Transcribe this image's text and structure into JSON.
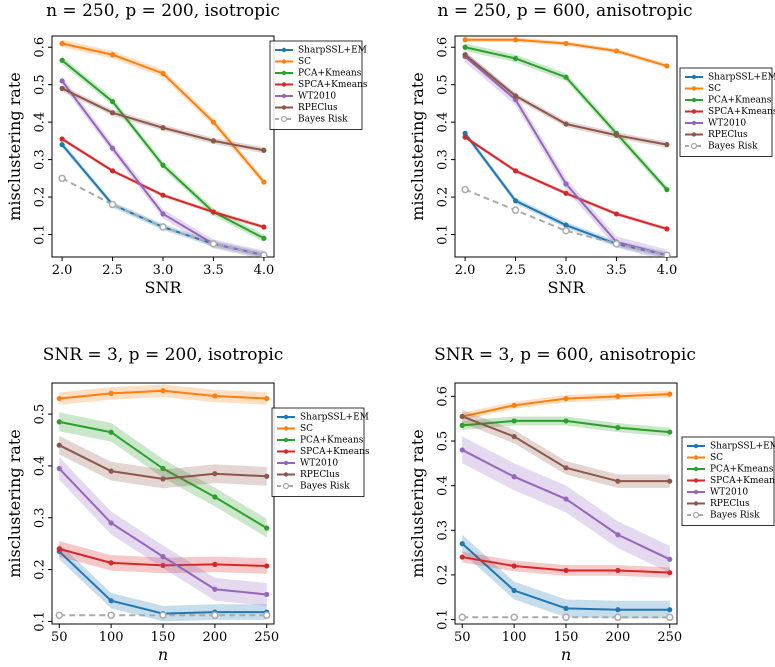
{
  "chart_data": [
    {
      "type": "line",
      "title": "n = 250, p = 200, isotropic",
      "xlabel": "SNR",
      "ylabel": "misclustering rate",
      "x": [
        2.0,
        2.5,
        3.0,
        3.5,
        4.0
      ],
      "xticks": [
        "2.0",
        "2.5",
        "3.0",
        "3.5",
        "4.0"
      ],
      "xlim": [
        1.9,
        4.1
      ],
      "ylim": [
        0.04,
        0.63
      ],
      "yticks": [
        0.1,
        0.2,
        0.3,
        0.4,
        0.5,
        0.6
      ],
      "legend_position": "top-right",
      "series": [
        {
          "name": "SharpSSL+EM",
          "values": [
            0.34,
            0.18,
            0.12,
            0.075,
            0.045
          ],
          "band": 0.008
        },
        {
          "name": "SC",
          "values": [
            0.61,
            0.58,
            0.53,
            0.4,
            0.24
          ],
          "band": 0.01
        },
        {
          "name": "PCA+Kmeans",
          "values": [
            0.565,
            0.455,
            0.285,
            0.16,
            0.09
          ],
          "band": 0.01
        },
        {
          "name": "SPCA+Kmeans",
          "values": [
            0.355,
            0.27,
            0.205,
            0.16,
            0.12
          ],
          "band": 0.005
        },
        {
          "name": "WT2010",
          "values": [
            0.51,
            0.33,
            0.155,
            0.075,
            0.045
          ],
          "band": 0.012
        },
        {
          "name": "RPEClus",
          "values": [
            0.49,
            0.425,
            0.385,
            0.35,
            0.325
          ],
          "band": 0.008
        },
        {
          "name": "Bayes Risk",
          "values": [
            0.25,
            0.18,
            0.12,
            0.075,
            0.045
          ],
          "dashed": true
        }
      ]
    },
    {
      "type": "line",
      "title": "n = 250, p = 600, anisotropic",
      "xlabel": "SNR",
      "ylabel": "misclustering rate",
      "x": [
        2.0,
        2.5,
        3.0,
        3.5,
        4.0
      ],
      "xticks": [
        "2.0",
        "2.5",
        "3.0",
        "3.5",
        "4.0"
      ],
      "xlim": [
        1.9,
        4.1
      ],
      "ylim": [
        0.04,
        0.63
      ],
      "yticks": [
        0.1,
        0.2,
        0.3,
        0.4,
        0.5,
        0.6
      ],
      "legend_position": "right",
      "series": [
        {
          "name": "SharpSSL+EM",
          "values": [
            0.37,
            0.19,
            0.125,
            0.075,
            0.045
          ],
          "band": 0.008
        },
        {
          "name": "SC",
          "values": [
            0.62,
            0.62,
            0.61,
            0.59,
            0.55
          ],
          "band": 0.006
        },
        {
          "name": "PCA+Kmeans",
          "values": [
            0.6,
            0.57,
            0.52,
            0.37,
            0.22
          ],
          "band": 0.01
        },
        {
          "name": "SPCA+Kmeans",
          "values": [
            0.36,
            0.27,
            0.21,
            0.155,
            0.115
          ],
          "band": 0.005
        },
        {
          "name": "WT2010",
          "values": [
            0.575,
            0.46,
            0.235,
            0.08,
            0.045
          ],
          "band": 0.015
        },
        {
          "name": "RPEClus",
          "values": [
            0.58,
            0.47,
            0.395,
            0.365,
            0.34
          ],
          "band": 0.008
        },
        {
          "name": "Bayes Risk",
          "values": [
            0.22,
            0.165,
            0.11,
            0.075,
            0.045
          ],
          "dashed": true
        }
      ]
    },
    {
      "type": "line",
      "title": "SNR = 3, p = 200, isotropic",
      "xlabel": "n",
      "ylabel": "misclustering rate",
      "x": [
        50,
        100,
        150,
        200,
        250
      ],
      "xticks": [
        "50",
        "100",
        "150",
        "200",
        "250"
      ],
      "xlim": [
        43,
        257
      ],
      "ylim": [
        0.095,
        0.56
      ],
      "yticks": [
        0.1,
        0.2,
        0.3,
        0.4,
        0.5
      ],
      "legend_position": "right",
      "series": [
        {
          "name": "SharpSSL+EM",
          "values": [
            0.235,
            0.14,
            0.115,
            0.118,
            0.118
          ],
          "band": 0.015
        },
        {
          "name": "SC",
          "values": [
            0.53,
            0.54,
            0.545,
            0.535,
            0.53
          ],
          "band": 0.012
        },
        {
          "name": "PCA+Kmeans",
          "values": [
            0.485,
            0.465,
            0.395,
            0.34,
            0.28
          ],
          "band": 0.018
        },
        {
          "name": "SPCA+Kmeans",
          "values": [
            0.24,
            0.213,
            0.208,
            0.21,
            0.207
          ],
          "band": 0.015
        },
        {
          "name": "WT2010",
          "values": [
            0.395,
            0.29,
            0.225,
            0.162,
            0.152
          ],
          "band": 0.022
        },
        {
          "name": "RPEClus",
          "values": [
            0.44,
            0.39,
            0.375,
            0.385,
            0.38
          ],
          "band": 0.018
        },
        {
          "name": "Bayes Risk",
          "values": [
            0.112,
            0.112,
            0.112,
            0.112,
            0.112
          ],
          "dashed": true
        }
      ]
    },
    {
      "type": "line",
      "title": "SNR = 3, p = 600, anisotropic",
      "xlabel": "n",
      "ylabel": "misclustering rate",
      "x": [
        50,
        100,
        150,
        200,
        250
      ],
      "xticks": [
        "50",
        "100",
        "150",
        "200",
        "250"
      ],
      "xlim": [
        43,
        257
      ],
      "ylim": [
        0.09,
        0.63
      ],
      "yticks": [
        0.1,
        0.2,
        0.3,
        0.4,
        0.5,
        0.6
      ],
      "legend_position": "right",
      "series": [
        {
          "name": "SharpSSL+EM",
          "values": [
            0.27,
            0.165,
            0.125,
            0.122,
            0.122
          ],
          "band": 0.02
        },
        {
          "name": "SC",
          "values": [
            0.555,
            0.58,
            0.595,
            0.6,
            0.605
          ],
          "band": 0.008
        },
        {
          "name": "PCA+Kmeans",
          "values": [
            0.535,
            0.545,
            0.545,
            0.53,
            0.52
          ],
          "band": 0.01
        },
        {
          "name": "SPCA+Kmeans",
          "values": [
            0.24,
            0.22,
            0.21,
            0.21,
            0.205
          ],
          "band": 0.012
        },
        {
          "name": "WT2010",
          "values": [
            0.48,
            0.42,
            0.37,
            0.29,
            0.235
          ],
          "band": 0.03
        },
        {
          "name": "RPEClus",
          "values": [
            0.555,
            0.51,
            0.44,
            0.41,
            0.41
          ],
          "band": 0.015
        },
        {
          "name": "Bayes Risk",
          "values": [
            0.105,
            0.105,
            0.105,
            0.105,
            0.105
          ],
          "dashed": true
        }
      ]
    }
  ],
  "colors": {
    "SharpSSL+EM": "#1f77b4",
    "SC": "#ff7f0e",
    "PCA+Kmeans": "#2ca02c",
    "SPCA+Kmeans": "#d62728",
    "WT2010": "#9467bd",
    "RPEClus": "#8c564b",
    "Bayes Risk": "#aaaaaa"
  }
}
